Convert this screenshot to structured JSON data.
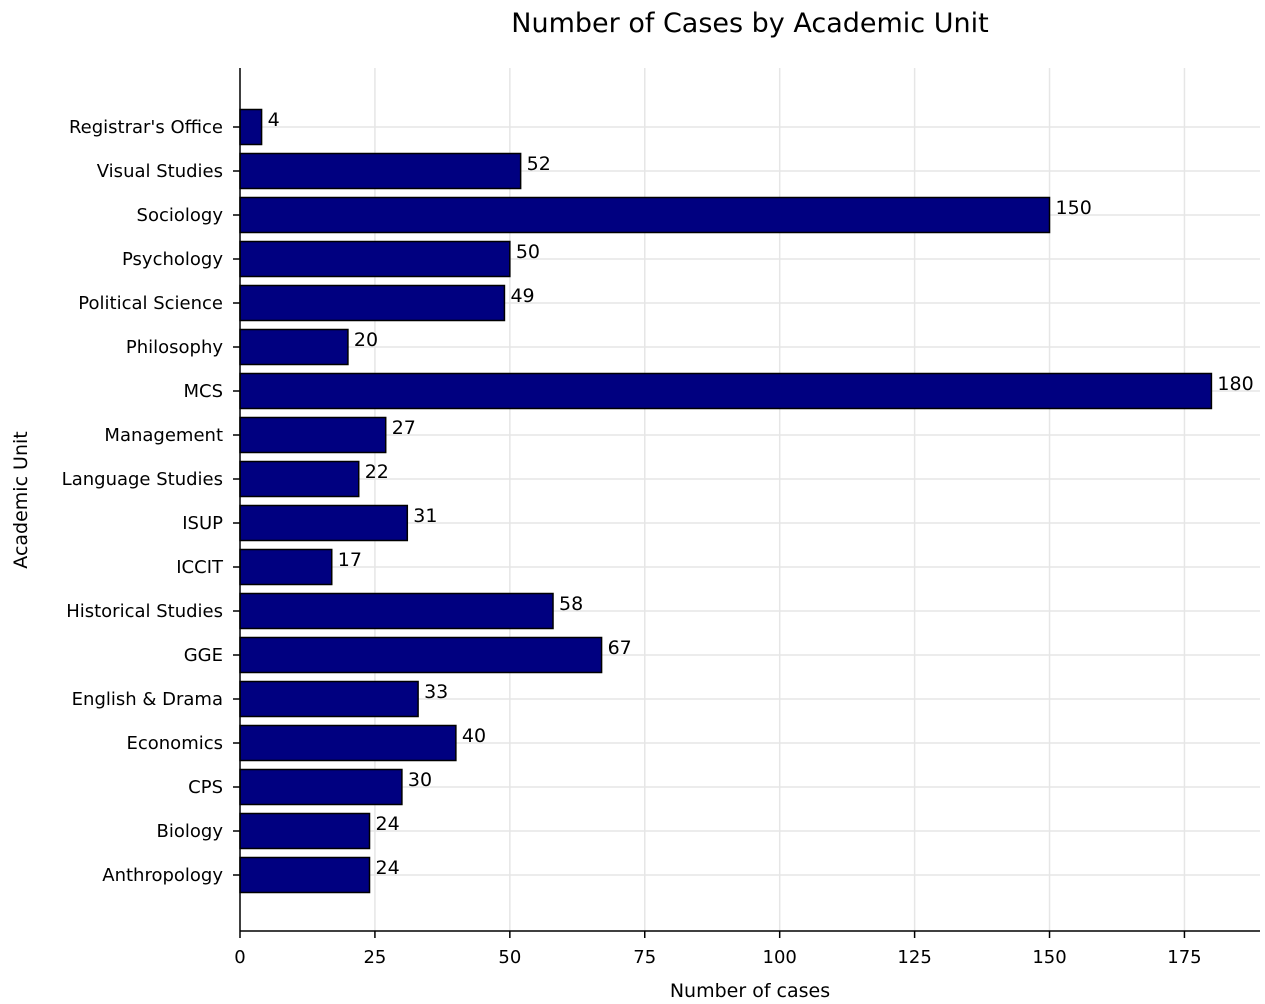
{
  "chart_data": {
    "type": "bar",
    "orientation": "horizontal",
    "title": "Number of Cases by Academic Unit",
    "xlabel": "Number of cases",
    "ylabel": "Academic Unit",
    "categories": [
      "Anthropology",
      "Biology",
      "CPS",
      "Economics",
      "English & Drama",
      "GGE",
      "Historical Studies",
      "ICCIT",
      "ISUP",
      "Language Studies",
      "Management",
      "MCS",
      "Philosophy",
      "Political Science",
      "Psychology",
      "Sociology",
      "Visual Studies",
      "Registrar's Office"
    ],
    "values": [
      24,
      24,
      30,
      40,
      33,
      67,
      58,
      17,
      31,
      22,
      27,
      180,
      20,
      49,
      50,
      150,
      52,
      4
    ],
    "xticks": [
      0,
      25,
      50,
      75,
      100,
      125,
      150,
      175
    ],
    "xlim": [
      0,
      189
    ],
    "grid": true,
    "legend": "none",
    "bar_color": "#000080",
    "bar_edge_color": "#000000"
  }
}
